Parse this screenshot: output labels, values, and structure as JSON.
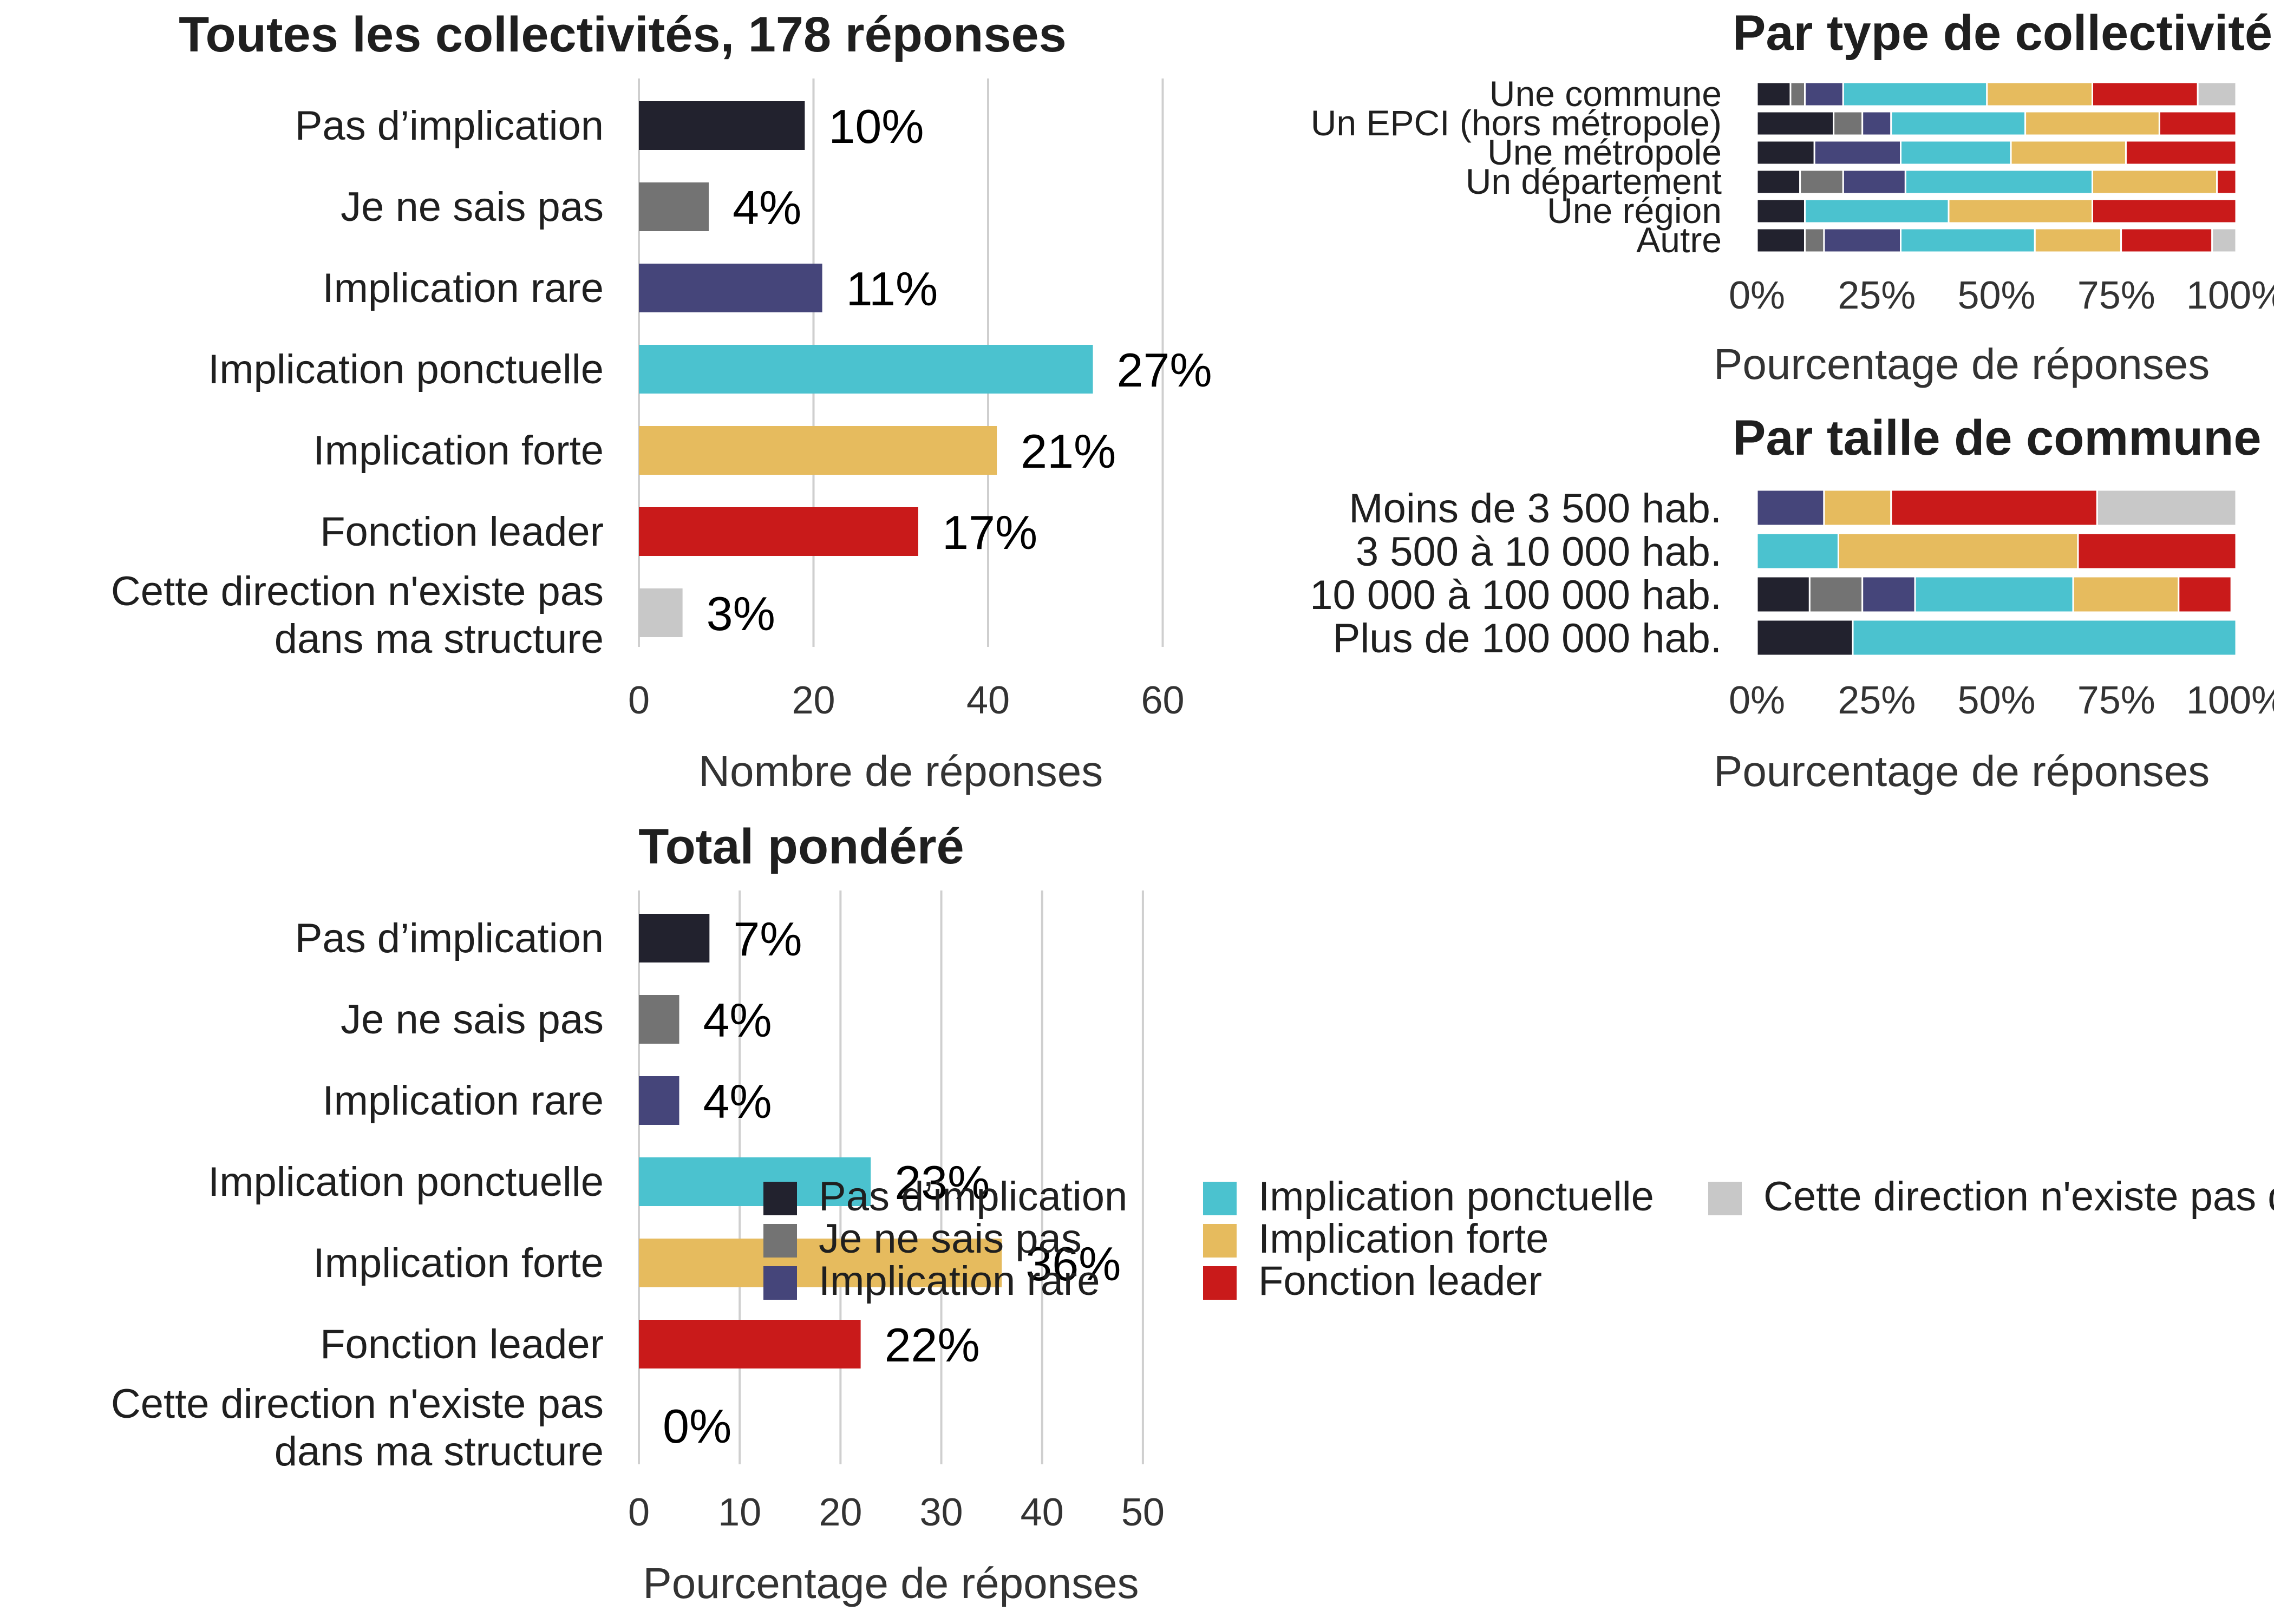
{
  "colors": {
    "pas_implication": "#22222e",
    "je_ne_sais_pas": "#737373",
    "implication_rare": "#45457a",
    "implication_ponctuelle": "#4bc2cf",
    "implication_forte": "#e6bb5e",
    "fonction_leader": "#c91a1a",
    "pas_direction": "#c8c8c8"
  },
  "chart_data": [
    {
      "id": "toutes",
      "type": "bar",
      "orientation": "horizontal",
      "title": "Toutes les collectivités, 178 réponses",
      "categories": [
        "Pas d’implication",
        "Je ne sais pas",
        "Implication rare",
        "Implication ponctuelle",
        "Implication forte",
        "Fonction leader",
        "Cette direction n'existe pas dans ma structure"
      ],
      "values": [
        19,
        8,
        21,
        52,
        41,
        32,
        5
      ],
      "labels": [
        "10%",
        "4%",
        "11%",
        "27%",
        "21%",
        "17%",
        "3%"
      ],
      "xlabel": "Nombre de réponses",
      "xlim": [
        0,
        80
      ],
      "xticks": [
        0,
        20,
        40,
        60
      ],
      "grid": true
    },
    {
      "id": "type",
      "type": "bar",
      "orientation": "horizontal-stacked",
      "title": "Par type de collectivité",
      "categories": [
        "Une commune",
        "Un EPCI (hors métropole)",
        "Une métropole",
        "Un département",
        "Une région",
        "Autre"
      ],
      "series_keys": [
        "pas_implication",
        "je_ne_sais_pas",
        "implication_rare",
        "implication_ponctuelle",
        "implication_forte",
        "fonction_leader",
        "pas_direction"
      ],
      "rows": [
        [
          7,
          3,
          8,
          30,
          22,
          22,
          8
        ],
        [
          16,
          6,
          6,
          28,
          28,
          16,
          0
        ],
        [
          12,
          0,
          18,
          23,
          24,
          23,
          0
        ],
        [
          9,
          9,
          13,
          39,
          26,
          4,
          0
        ],
        [
          10,
          0,
          0,
          30,
          30,
          30,
          0
        ],
        [
          10,
          4,
          16,
          28,
          18,
          19,
          5
        ]
      ],
      "xlabel": "Pourcentage de réponses",
      "xlim": [
        0,
        100
      ],
      "xticks": [
        "0%",
        "25%",
        "50%",
        "75%",
        "100%"
      ]
    },
    {
      "id": "taille",
      "type": "bar",
      "orientation": "horizontal-stacked",
      "title": "Par taille de commune",
      "categories": [
        "Moins de 3 500 hab.",
        "3 500 à 10 000 hab.",
        "10 000 à 100 000 hab.",
        "Plus de 100 000 hab."
      ],
      "series_keys": [
        "pas_implication",
        "je_ne_sais_pas",
        "implication_rare",
        "implication_ponctuelle",
        "implication_forte",
        "fonction_leader",
        "pas_direction"
      ],
      "rows": [
        [
          0,
          0,
          14,
          0,
          14,
          43,
          29
        ],
        [
          0,
          0,
          0,
          17,
          50,
          33,
          0
        ],
        [
          11,
          11,
          11,
          33,
          22,
          11,
          0
        ],
        [
          20,
          0,
          0,
          80,
          0,
          0,
          0
        ]
      ],
      "xlabel": "Pourcentage de réponses",
      "xlim": [
        0,
        100
      ],
      "xticks": [
        "0%",
        "25%",
        "50%",
        "75%",
        "100%"
      ]
    },
    {
      "id": "pondere",
      "type": "bar",
      "orientation": "horizontal",
      "title": "Total pondéré",
      "categories": [
        "Pas d’implication",
        "Je ne sais pas",
        "Implication rare",
        "Implication ponctuelle",
        "Implication forte",
        "Fonction leader",
        "Cette direction n'existe pas dans ma structure"
      ],
      "values": [
        7,
        4,
        4,
        23,
        36,
        22,
        0
      ],
      "labels": [
        "7%",
        "4%",
        "4%",
        "23%",
        "36%",
        "22%",
        "0%"
      ],
      "xlabel": "Pourcentage de réponses",
      "xlim": [
        0,
        55
      ],
      "xticks": [
        0,
        10,
        20,
        30,
        40,
        50
      ],
      "grid": true
    }
  ],
  "legend": {
    "items": [
      {
        "key": "pas_implication",
        "label": "Pas d’implication"
      },
      {
        "key": "je_ne_sais_pas",
        "label": "Je ne sais pas"
      },
      {
        "key": "implication_rare",
        "label": "Implication rare"
      },
      {
        "key": "implication_ponctuelle",
        "label": "Implication ponctuelle"
      },
      {
        "key": "implication_forte",
        "label": "Implication forte"
      },
      {
        "key": "fonction_leader",
        "label": "Fonction leader"
      },
      {
        "key": "pas_direction",
        "label": "Cette direction n'existe pas dans ma structure"
      }
    ]
  }
}
